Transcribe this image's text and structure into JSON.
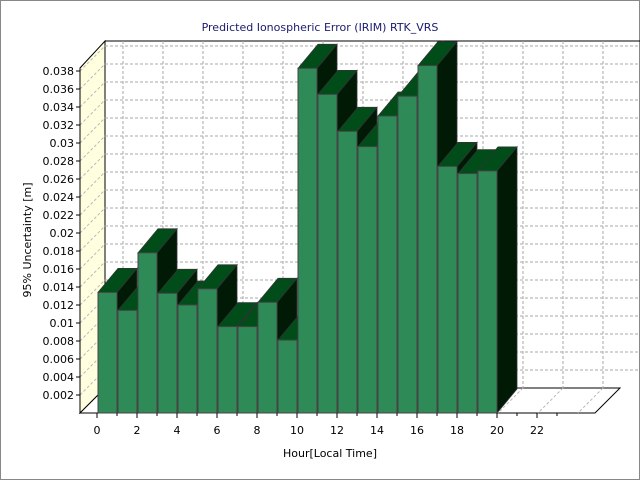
{
  "chart_data": {
    "type": "bar",
    "title": "Predicted Ionospheric Error (IRIM) RTK_VRS",
    "xlabel": "Hour[Local Time]",
    "ylabel": "95% Uncertainty [m]",
    "x": [
      0,
      1,
      2,
      3,
      4,
      5,
      6,
      7,
      8,
      9,
      10,
      11,
      12,
      13,
      14,
      15,
      16,
      17,
      18,
      19
    ],
    "values": [
      0.0134,
      0.0114,
      0.0178,
      0.0133,
      0.012,
      0.0138,
      0.0096,
      0.0096,
      0.0123,
      0.0081,
      0.0383,
      0.0354,
      0.0313,
      0.0296,
      0.033,
      0.0352,
      0.0386,
      0.0274,
      0.0266,
      0.0269
    ],
    "xticks": [
      "0",
      "2",
      "4",
      "6",
      "8",
      "10",
      "12",
      "14",
      "16",
      "18",
      "20",
      "22"
    ],
    "yticks": [
      "0.002",
      "0.004",
      "0.006",
      "0.008",
      "0.01",
      "0.012",
      "0.014",
      "0.016",
      "0.018",
      "0.02",
      "0.022",
      "0.024",
      "0.026",
      "0.028",
      "0.03",
      "0.032",
      "0.034",
      "0.036",
      "0.038"
    ],
    "ylim": [
      0,
      0.0383
    ],
    "xlim": [
      0,
      26
    ],
    "grid": true,
    "style": "3d",
    "colors": {
      "front": "#2e8b57",
      "top": "#004d1a",
      "side": "#001a06",
      "wall": "#ffffe0",
      "title": "#1a1a6e"
    }
  }
}
